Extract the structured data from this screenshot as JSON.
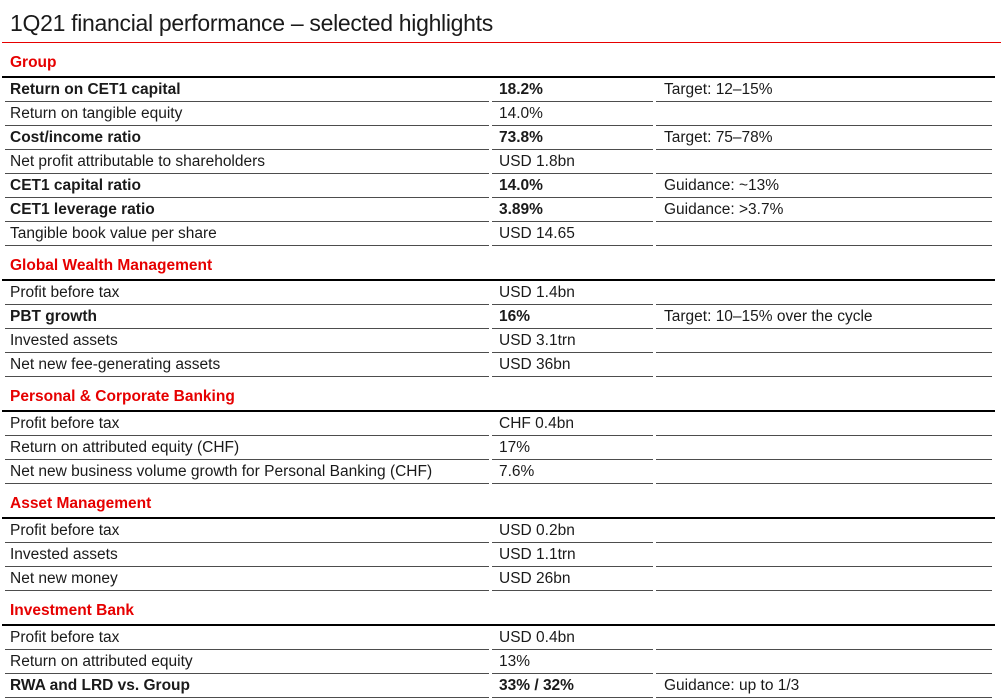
{
  "title": "1Q21 financial performance – selected highlights",
  "colors": {
    "accent_red": "#e60000",
    "text": "#1a1a1a",
    "row_line": "#4d4d4d",
    "table_top_line": "#000000"
  },
  "sections": [
    {
      "name": "Group",
      "rows": [
        {
          "label": "Return on CET1 capital",
          "value": "18.2%",
          "note": "Target: 12–15%",
          "bold": true
        },
        {
          "label": "Return on tangible equity",
          "value": "14.0%",
          "note": "",
          "bold": false
        },
        {
          "label": "Cost/income ratio",
          "value": "73.8%",
          "note": "Target: 75–78%",
          "bold": true
        },
        {
          "label": "Net profit attributable to shareholders",
          "value": "USD 1.8bn",
          "note": "",
          "bold": false
        },
        {
          "label": "CET1 capital ratio",
          "value": "14.0%",
          "note": "Guidance: ~13%",
          "bold": true
        },
        {
          "label": "CET1 leverage ratio",
          "value": "3.89%",
          "note": "Guidance: >3.7%",
          "bold": true
        },
        {
          "label": "Tangible book value per share",
          "value": "USD 14.65",
          "note": "",
          "bold": false
        }
      ]
    },
    {
      "name": "Global Wealth Management",
      "rows": [
        {
          "label": "Profit before tax",
          "value": "USD 1.4bn",
          "note": "",
          "bold": false
        },
        {
          "label": "PBT growth",
          "value": "16%",
          "note": "Target: 10–15% over the cycle",
          "bold": true
        },
        {
          "label": "Invested assets",
          "value": "USD 3.1trn",
          "note": "",
          "bold": false
        },
        {
          "label": "Net new fee-generating assets",
          "value": "USD 36bn",
          "note": "",
          "bold": false
        }
      ]
    },
    {
      "name": "Personal & Corporate Banking",
      "rows": [
        {
          "label": "Profit before tax",
          "value": "CHF 0.4bn",
          "note": "",
          "bold": false
        },
        {
          "label": "Return on attributed equity (CHF)",
          "value": "17%",
          "note": "",
          "bold": false
        },
        {
          "label": "Net new business volume growth for Personal Banking (CHF)",
          "value": "7.6%",
          "note": "",
          "bold": false
        }
      ]
    },
    {
      "name": "Asset Management",
      "rows": [
        {
          "label": "Profit before tax",
          "value": "USD 0.2bn",
          "note": "",
          "bold": false
        },
        {
          "label": "Invested assets",
          "value": "USD 1.1trn",
          "note": "",
          "bold": false
        },
        {
          "label": "Net new money",
          "value": "USD 26bn",
          "note": "",
          "bold": false
        }
      ]
    },
    {
      "name": "Investment Bank",
      "rows": [
        {
          "label": "Profit before tax",
          "value": "USD 0.4bn",
          "note": "",
          "bold": false
        },
        {
          "label": "Return on attributed equity",
          "value": "13%",
          "note": "",
          "bold": false
        },
        {
          "label": "RWA and LRD vs. Group",
          "value": "33% / 32%",
          "note": "Guidance: up to 1/3",
          "bold": true
        }
      ]
    }
  ]
}
